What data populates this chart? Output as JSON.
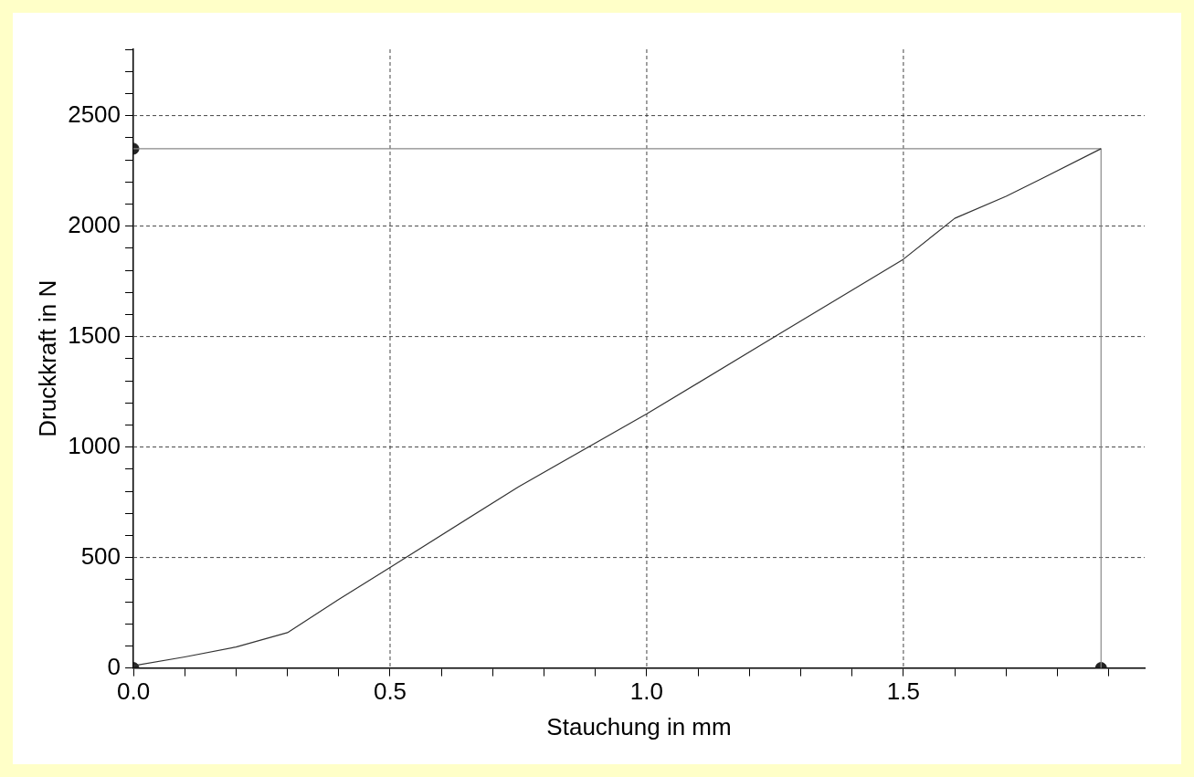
{
  "chart_data": {
    "type": "line",
    "xlabel": "Stauchung in mm",
    "ylabel": "Druckkraft in N",
    "xlim": [
      0,
      1.97
    ],
    "ylim": [
      0,
      2800
    ],
    "xticks": [
      {
        "value": 0,
        "label": "0.0"
      },
      {
        "value": 0.1,
        "label": null
      },
      {
        "value": 0.2,
        "label": null
      },
      {
        "value": 0.3,
        "label": null
      },
      {
        "value": 0.4,
        "label": null
      },
      {
        "value": 0.5,
        "label": "0.5"
      },
      {
        "value": 0.6,
        "label": null
      },
      {
        "value": 0.7,
        "label": null
      },
      {
        "value": 0.8,
        "label": null
      },
      {
        "value": 0.9,
        "label": null
      },
      {
        "value": 1,
        "label": "1.0"
      },
      {
        "value": 1.1,
        "label": null
      },
      {
        "value": 1.2,
        "label": null
      },
      {
        "value": 1.3,
        "label": null
      },
      {
        "value": 1.4,
        "label": null
      },
      {
        "value": 1.5,
        "label": "1.5"
      },
      {
        "value": 1.6,
        "label": null
      },
      {
        "value": 1.7,
        "label": null
      },
      {
        "value": 1.8,
        "label": null
      },
      {
        "value": 1.9,
        "label": null
      }
    ],
    "yticks": [
      0,
      {
        "value": 100,
        "label": null
      },
      {
        "value": 200,
        "label": null
      },
      {
        "value": 300,
        "label": null
      },
      {
        "value": 400,
        "label": null
      },
      500,
      {
        "value": 600,
        "label": null
      },
      {
        "value": 700,
        "label": null
      },
      {
        "value": 800,
        "label": null
      },
      {
        "value": 900,
        "label": null
      },
      1000,
      {
        "value": 1100,
        "label": null
      },
      {
        "value": 1200,
        "label": null
      },
      {
        "value": 1300,
        "label": null
      },
      {
        "value": 1400,
        "label": null
      },
      1500,
      {
        "value": 1600,
        "label": null
      },
      {
        "value": 1700,
        "label": null
      },
      {
        "value": 1800,
        "label": null
      },
      {
        "value": 1900,
        "label": null
      },
      2000,
      {
        "value": 2100,
        "label": null
      },
      {
        "value": 2200,
        "label": null
      },
      {
        "value": 2300,
        "label": null
      },
      {
        "value": 2400,
        "label": null
      },
      2500,
      {
        "value": 2600,
        "label": null
      },
      {
        "value": 2700,
        "label": null
      },
      {
        "value": 2800,
        "label": null
      }
    ],
    "grid": true,
    "legend": false,
    "series": [
      {
        "color": "#333333",
        "marker": "none",
        "x": [
          0,
          0.1,
          0.2,
          0.3,
          0.4,
          0.5,
          0.75,
          1,
          1.25,
          1.5,
          1.6,
          1.7,
          1.77,
          1.885
        ],
        "values": [
          10,
          50,
          95,
          160,
          310,
          455,
          820,
          1150,
          1500,
          1850,
          2035,
          2135,
          2215,
          2350
        ]
      },
      {
        "type": "line",
        "color": "#888888",
        "marker": "none",
        "x": [
          0,
          1.885,
          1.885
        ],
        "values": [
          2350,
          2350,
          0
        ]
      },
      {
        "type": "scatter",
        "color": "#222222",
        "marker": "circle",
        "x": [
          0,
          0,
          1.885
        ],
        "values": [
          2350,
          0,
          0
        ]
      }
    ]
  }
}
